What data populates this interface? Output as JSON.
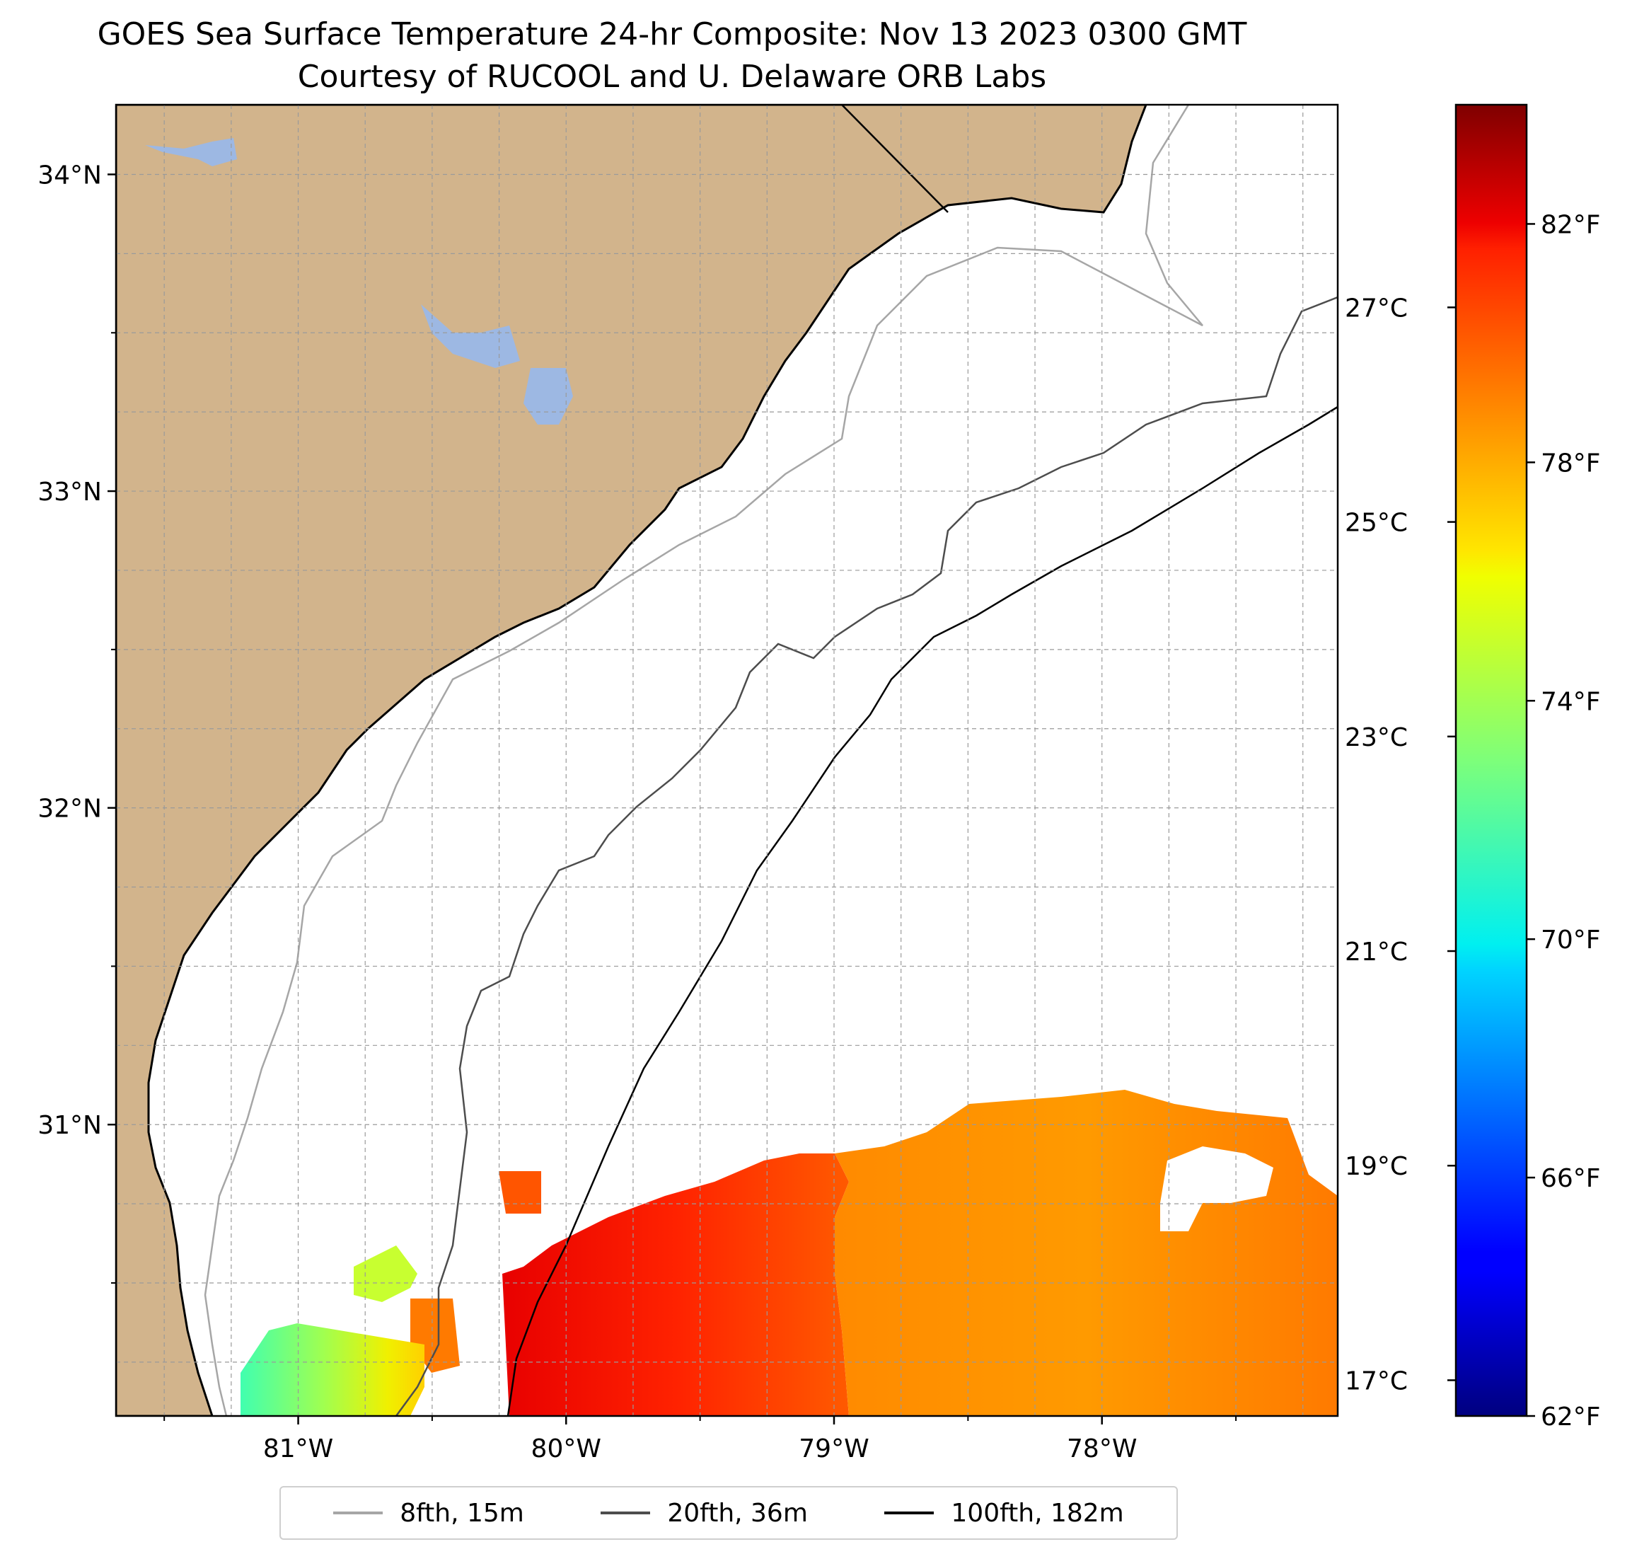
{
  "title": "GOES Sea Surface Temperature 24-hr Composite: Nov 13 2023 0300 GMT",
  "subtitle": "Courtesy of RUCOOL and U. Delaware ORB Labs",
  "map": {
    "lon_range": [
      -81.68,
      -77.12
    ],
    "lat_range": [
      30.08,
      34.22
    ],
    "lon_ticks": [
      {
        "value": -81,
        "label": "81°W"
      },
      {
        "value": -80,
        "label": "80°W"
      },
      {
        "value": -79,
        "label": "79°W"
      },
      {
        "value": -78,
        "label": "78°W"
      }
    ],
    "lat_ticks": [
      {
        "value": 31,
        "label": "31°N"
      },
      {
        "value": 32,
        "label": "32°N"
      },
      {
        "value": 33,
        "label": "33°N"
      },
      {
        "value": 34,
        "label": "34°N"
      }
    ],
    "grid": "dashed",
    "land_color": "#d2b48c",
    "lake_color": "#9db8e3"
  },
  "colorbar": {
    "colormap": "jet",
    "range_f": [
      62,
      84
    ],
    "fahrenheit_ticks": [
      {
        "value": 62,
        "label": "62°F"
      },
      {
        "value": 66,
        "label": "66°F"
      },
      {
        "value": 70,
        "label": "70°F"
      },
      {
        "value": 74,
        "label": "74°F"
      },
      {
        "value": 78,
        "label": "78°F"
      },
      {
        "value": 82,
        "label": "82°F"
      }
    ],
    "celsius_ticks": [
      {
        "value": 17,
        "label": "17°C"
      },
      {
        "value": 19,
        "label": "19°C"
      },
      {
        "value": 21,
        "label": "21°C"
      },
      {
        "value": 23,
        "label": "23°C"
      },
      {
        "value": 25,
        "label": "25°C"
      },
      {
        "value": 27,
        "label": "27°C"
      }
    ]
  },
  "legend": [
    {
      "label": "8fth, 15m",
      "color": "#a6a6a6"
    },
    {
      "label": "20fth, 36m",
      "color": "#4d4d4d"
    },
    {
      "label": "100fth, 182m",
      "color": "#000000"
    }
  ]
}
